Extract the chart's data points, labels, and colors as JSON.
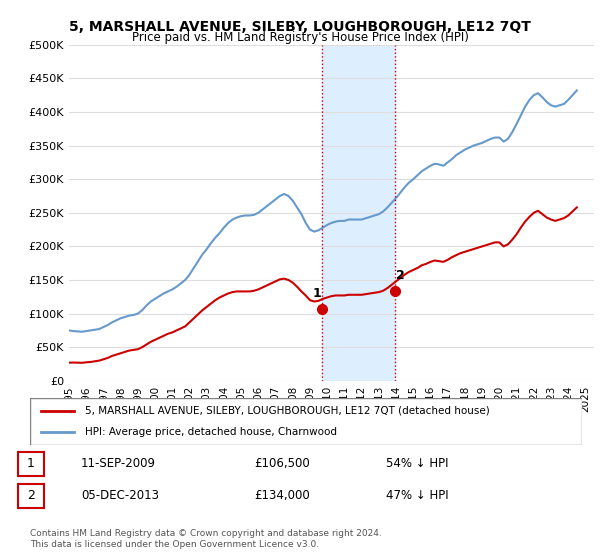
{
  "title": "5, MARSHALL AVENUE, SILEBY, LOUGHBOROUGH, LE12 7QT",
  "subtitle": "Price paid vs. HM Land Registry's House Price Index (HPI)",
  "legend_line1": "5, MARSHALL AVENUE, SILEBY, LOUGHBOROUGH, LE12 7QT (detached house)",
  "legend_line2": "HPI: Average price, detached house, Charnwood",
  "transactions": [
    {
      "num": 1,
      "date": "11-SEP-2009",
      "price": "£106,500",
      "pct": "54% ↓ HPI"
    },
    {
      "num": 2,
      "date": "05-DEC-2013",
      "price": "£134,000",
      "pct": "47% ↓ HPI"
    }
  ],
  "sale_dates": [
    "2009-09-11",
    "2013-12-05"
  ],
  "sale_prices": [
    106500,
    134000
  ],
  "footnote": "Contains HM Land Registry data © Crown copyright and database right 2024.\nThis data is licensed under the Open Government Licence v3.0.",
  "ylim": [
    0,
    500000
  ],
  "yticks": [
    0,
    50000,
    100000,
    150000,
    200000,
    250000,
    300000,
    350000,
    400000,
    450000,
    500000
  ],
  "ytick_labels": [
    "£0",
    "£50K",
    "£100K",
    "£150K",
    "£200K",
    "£250K",
    "£300K",
    "£350K",
    "£400K",
    "£450K",
    "£500K"
  ],
  "line_color_red": "#cc0000",
  "line_color_blue": "#6699cc",
  "shade_color": "#ddeeff",
  "marker_color": "#cc0000",
  "grid_color": "#dddddd",
  "background_color": "#ffffff",
  "hpi_data": {
    "years": [
      1995.0,
      1995.25,
      1995.5,
      1995.75,
      1996.0,
      1996.25,
      1996.5,
      1996.75,
      1997.0,
      1997.25,
      1997.5,
      1997.75,
      1998.0,
      1998.25,
      1998.5,
      1998.75,
      1999.0,
      1999.25,
      1999.5,
      1999.75,
      2000.0,
      2000.25,
      2000.5,
      2000.75,
      2001.0,
      2001.25,
      2001.5,
      2001.75,
      2002.0,
      2002.25,
      2002.5,
      2002.75,
      2003.0,
      2003.25,
      2003.5,
      2003.75,
      2004.0,
      2004.25,
      2004.5,
      2004.75,
      2005.0,
      2005.25,
      2005.5,
      2005.75,
      2006.0,
      2006.25,
      2006.5,
      2006.75,
      2007.0,
      2007.25,
      2007.5,
      2007.75,
      2008.0,
      2008.25,
      2008.5,
      2008.75,
      2009.0,
      2009.25,
      2009.5,
      2009.75,
      2010.0,
      2010.25,
      2010.5,
      2010.75,
      2011.0,
      2011.25,
      2011.5,
      2011.75,
      2012.0,
      2012.25,
      2012.5,
      2012.75,
      2013.0,
      2013.25,
      2013.5,
      2013.75,
      2014.0,
      2014.25,
      2014.5,
      2014.75,
      2015.0,
      2015.25,
      2015.5,
      2015.75,
      2016.0,
      2016.25,
      2016.5,
      2016.75,
      2017.0,
      2017.25,
      2017.5,
      2017.75,
      2018.0,
      2018.25,
      2018.5,
      2018.75,
      2019.0,
      2019.25,
      2019.5,
      2019.75,
      2020.0,
      2020.25,
      2020.5,
      2020.75,
      2021.0,
      2021.25,
      2021.5,
      2021.75,
      2022.0,
      2022.25,
      2022.5,
      2022.75,
      2023.0,
      2023.25,
      2023.5,
      2023.75,
      2024.0,
      2024.25,
      2024.5
    ],
    "values": [
      75000,
      74000,
      73500,
      73000,
      74000,
      75000,
      76000,
      77000,
      80000,
      83000,
      87000,
      90000,
      93000,
      95000,
      97000,
      98000,
      100000,
      105000,
      112000,
      118000,
      122000,
      126000,
      130000,
      133000,
      136000,
      140000,
      145000,
      150000,
      158000,
      168000,
      178000,
      188000,
      196000,
      205000,
      213000,
      220000,
      228000,
      235000,
      240000,
      243000,
      245000,
      246000,
      246000,
      247000,
      250000,
      255000,
      260000,
      265000,
      270000,
      275000,
      278000,
      275000,
      268000,
      258000,
      248000,
      235000,
      225000,
      222000,
      224000,
      228000,
      232000,
      235000,
      237000,
      238000,
      238000,
      240000,
      240000,
      240000,
      240000,
      242000,
      244000,
      246000,
      248000,
      252000,
      258000,
      265000,
      272000,
      280000,
      288000,
      295000,
      300000,
      306000,
      312000,
      316000,
      320000,
      323000,
      322000,
      320000,
      325000,
      330000,
      336000,
      340000,
      344000,
      347000,
      350000,
      352000,
      354000,
      357000,
      360000,
      362000,
      362000,
      356000,
      360000,
      370000,
      382000,
      395000,
      408000,
      418000,
      425000,
      428000,
      422000,
      415000,
      410000,
      408000,
      410000,
      412000,
      418000,
      425000,
      432000
    ]
  },
  "property_data": {
    "years": [
      1995.0,
      1995.25,
      1995.5,
      1995.75,
      1996.0,
      1996.25,
      1996.5,
      1996.75,
      1997.0,
      1997.25,
      1997.5,
      1997.75,
      1998.0,
      1998.25,
      1998.5,
      1998.75,
      1999.0,
      1999.25,
      1999.5,
      1999.75,
      2000.0,
      2000.25,
      2000.5,
      2000.75,
      2001.0,
      2001.25,
      2001.5,
      2001.75,
      2002.0,
      2002.25,
      2002.5,
      2002.75,
      2003.0,
      2003.25,
      2003.5,
      2003.75,
      2004.0,
      2004.25,
      2004.5,
      2004.75,
      2005.0,
      2005.25,
      2005.5,
      2005.75,
      2006.0,
      2006.25,
      2006.5,
      2006.75,
      2007.0,
      2007.25,
      2007.5,
      2007.75,
      2008.0,
      2008.25,
      2008.5,
      2008.75,
      2009.0,
      2009.25,
      2009.5,
      2009.75,
      2010.0,
      2010.25,
      2010.5,
      2010.75,
      2011.0,
      2011.25,
      2011.5,
      2011.75,
      2012.0,
      2012.25,
      2012.5,
      2012.75,
      2013.0,
      2013.25,
      2013.5,
      2013.75,
      2014.0,
      2014.25,
      2014.5,
      2014.75,
      2015.0,
      2015.25,
      2015.5,
      2015.75,
      2016.0,
      2016.25,
      2016.5,
      2016.75,
      2017.0,
      2017.25,
      2017.5,
      2017.75,
      2018.0,
      2018.25,
      2018.5,
      2018.75,
      2019.0,
      2019.25,
      2019.5,
      2019.75,
      2020.0,
      2020.25,
      2020.5,
      2020.75,
      2021.0,
      2021.25,
      2021.5,
      2021.75,
      2022.0,
      2022.25,
      2022.5,
      2022.75,
      2023.0,
      2023.25,
      2023.5,
      2023.75,
      2024.0,
      2024.25,
      2024.5
    ],
    "values": [
      27000,
      27200,
      27000,
      26800,
      27500,
      28000,
      29000,
      30000,
      32000,
      34000,
      37000,
      39000,
      41000,
      43000,
      45000,
      46000,
      47000,
      50000,
      54000,
      58000,
      61000,
      64000,
      67000,
      70000,
      72000,
      75000,
      78000,
      81000,
      87000,
      93000,
      99000,
      105000,
      110000,
      115000,
      120000,
      124000,
      127000,
      130000,
      132000,
      133000,
      133000,
      133000,
      133000,
      134000,
      136000,
      139000,
      142000,
      145000,
      148000,
      151000,
      152000,
      150000,
      146000,
      140000,
      133000,
      127000,
      120000,
      118000,
      119000,
      122000,
      124000,
      126000,
      127000,
      127000,
      127000,
      128000,
      128000,
      128000,
      128000,
      129000,
      130000,
      131000,
      132000,
      134000,
      138000,
      143000,
      148000,
      153000,
      158000,
      162000,
      165000,
      168000,
      172000,
      174000,
      177000,
      179000,
      178000,
      177000,
      180000,
      184000,
      187000,
      190000,
      192000,
      194000,
      196000,
      198000,
      200000,
      202000,
      204000,
      206000,
      206000,
      200000,
      203000,
      210000,
      218000,
      228000,
      237000,
      244000,
      250000,
      253000,
      248000,
      243000,
      240000,
      238000,
      240000,
      242000,
      246000,
      252000,
      258000
    ]
  }
}
